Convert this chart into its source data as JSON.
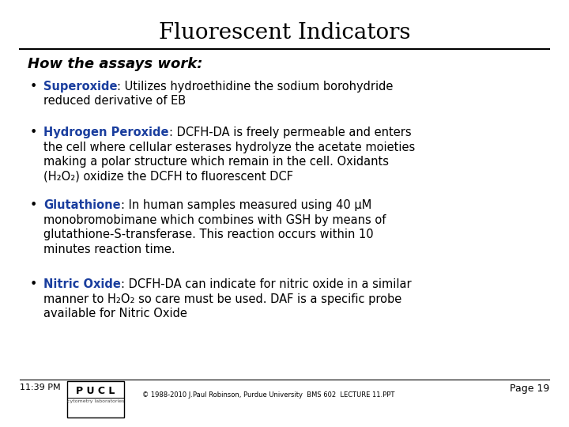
{
  "title": "Fluorescent Indicators",
  "title_fontsize": 20,
  "title_fontfamily": "serif",
  "background_color": "#ffffff",
  "heading": "How the assays work:",
  "heading_fontsize": 13,
  "bullet_color": "#1a3e9e",
  "bullet_fontsize": 10.5,
  "text_color": "#000000",
  "bullets": [
    {
      "label": "Superoxide",
      "colon_text": ": Utilizes hydroethidine the sodium borohydride",
      "extra_lines": [
        "reduced derivative of EB"
      ]
    },
    {
      "label": "Hydrogen Peroxide",
      "colon_text": ": DCFH-DA is freely permeable and enters",
      "extra_lines": [
        "the cell where cellular esterases hydrolyze the acetate moieties",
        "making a polar structure which remain in the cell. Oxidants",
        "(H₂O₂) oxidize the DCFH to fluorescent DCF"
      ]
    },
    {
      "label": "Glutathione",
      "colon_text": ": In human samples measured using 40 μM",
      "extra_lines": [
        "monobromobimane which combines with GSH by means of",
        "glutathione-S-transferase. This reaction occurs within 10",
        "minutes reaction time."
      ]
    },
    {
      "label": "Nitric Oxide",
      "colon_text": ": DCFH-DA can indicate for nitric oxide in a similar",
      "extra_lines": [
        "manner to H₂O₂ so care must be used. DAF is a specific probe",
        "available for Nitric Oxide"
      ]
    }
  ],
  "footer_time": "11:39 PM",
  "footer_copy": "© 1988-2010 J.Paul Robinson, Purdue University  BMS 602  LECTURE 11.PPT",
  "footer_page": "Page 19",
  "line_color": "#000000"
}
